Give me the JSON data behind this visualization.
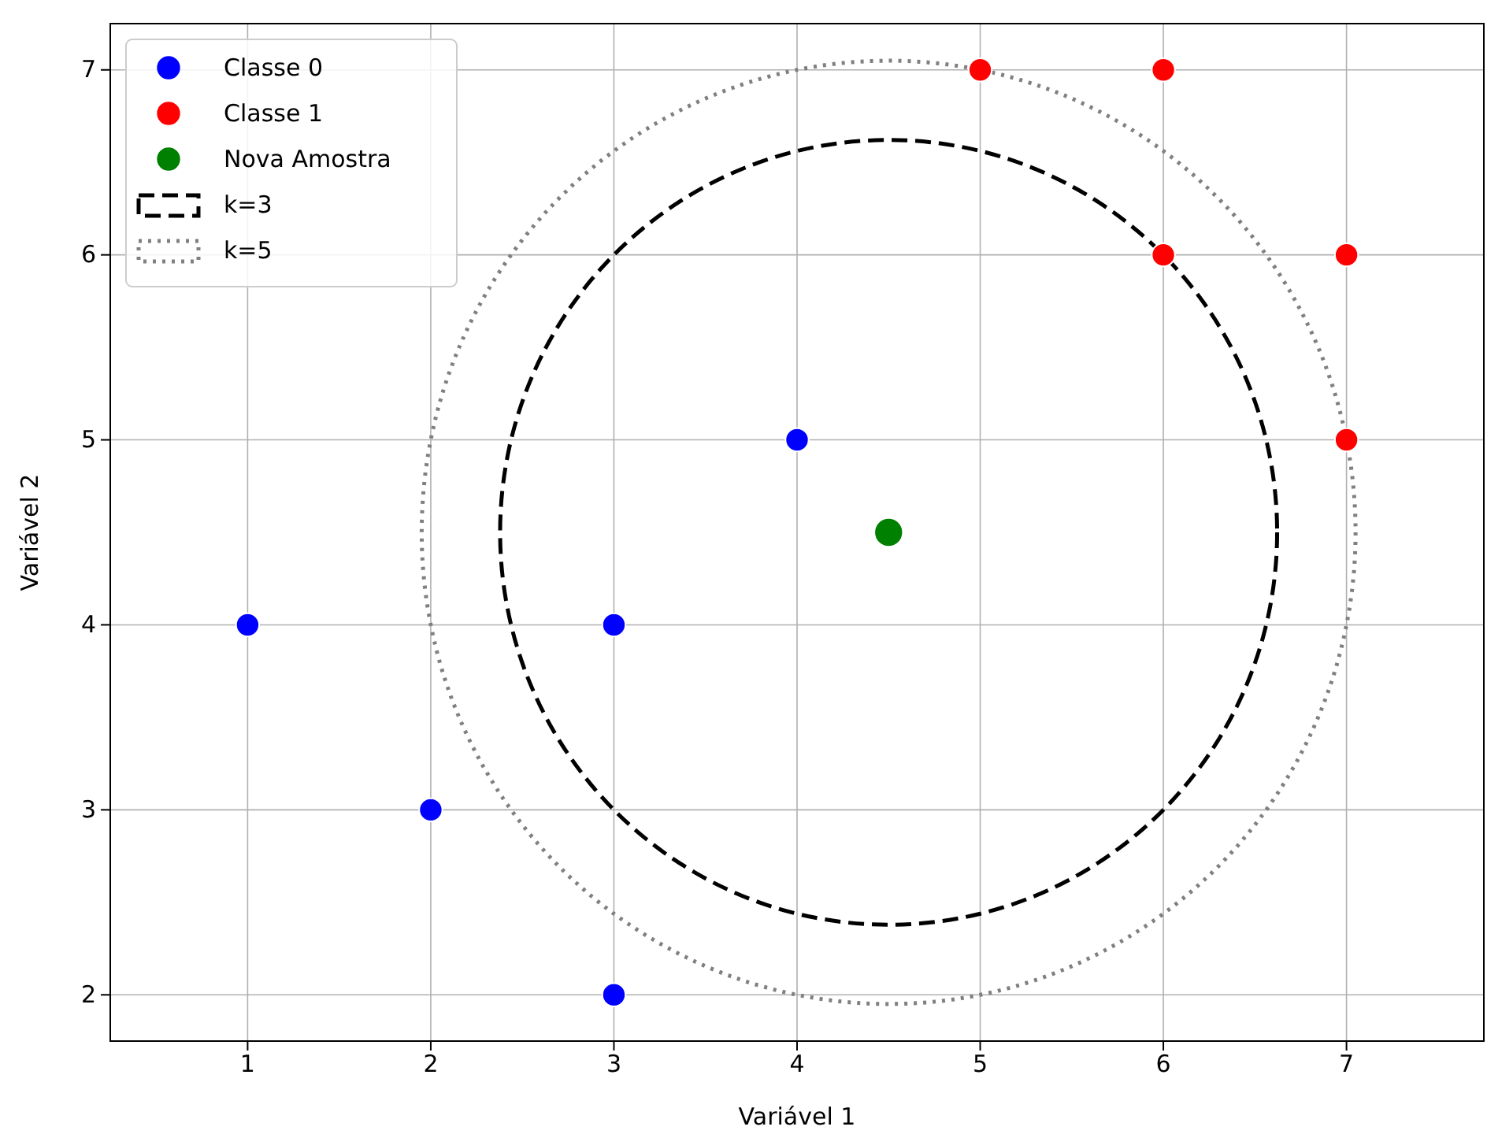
{
  "chart_data": {
    "type": "scatter",
    "xlabel": "Variável 1",
    "ylabel": "Variável 2",
    "xlim": [
      0.25,
      7.75
    ],
    "ylim": [
      1.75,
      7.25
    ],
    "xticks": [
      1,
      2,
      3,
      4,
      5,
      6,
      7
    ],
    "yticks": [
      2,
      3,
      4,
      5,
      6,
      7
    ],
    "grid": true,
    "legend": "top left",
    "marker": "circle",
    "series": [
      {
        "name": "Classe 0",
        "color": "#0000ff",
        "x": [
          1,
          2,
          3,
          3,
          4
        ],
        "values": [
          4,
          3,
          4,
          2,
          5
        ]
      },
      {
        "name": "Classe 1",
        "color": "#ff0000",
        "x": [
          5,
          6,
          6,
          7,
          7
        ],
        "values": [
          7,
          7,
          6,
          6,
          5
        ]
      },
      {
        "name": "Nova Amostra",
        "color": "#008000",
        "x": [
          4.5
        ],
        "values": [
          4.5
        ]
      }
    ],
    "annotations": [
      "k=3",
      "k=5"
    ]
  }
}
